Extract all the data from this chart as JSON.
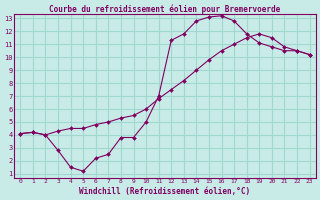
{
  "title": "Courbe du refroidissement éolien pour Bremervoerde",
  "xlabel": "Windchill (Refroidissement éolien,°C)",
  "ylabel": "",
  "bg_color": "#c8ebe8",
  "line_color": "#800060",
  "grid_color": "#a0d8d0",
  "line1_x": [
    0,
    1,
    2,
    3,
    4,
    5,
    6,
    7,
    8,
    9,
    10,
    11,
    12,
    13,
    14,
    15,
    16,
    17,
    18,
    19,
    20,
    21,
    22,
    23
  ],
  "line1_y": [
    4.1,
    4.2,
    4.0,
    2.8,
    1.5,
    1.2,
    2.2,
    2.5,
    3.8,
    3.8,
    5.0,
    7.0,
    11.3,
    11.8,
    12.8,
    13.1,
    13.2,
    12.8,
    11.8,
    11.1,
    10.8,
    10.5,
    10.5,
    10.2
  ],
  "line2_x": [
    0,
    1,
    2,
    3,
    4,
    5,
    6,
    7,
    8,
    9,
    10,
    11,
    12,
    13,
    14,
    15,
    16,
    17,
    18,
    19,
    20,
    21,
    22,
    23
  ],
  "line2_y": [
    4.1,
    4.2,
    4.0,
    4.3,
    4.5,
    4.5,
    4.8,
    5.0,
    5.3,
    5.5,
    6.0,
    6.8,
    7.5,
    8.2,
    9.0,
    9.8,
    10.5,
    11.0,
    11.5,
    11.8,
    11.5,
    10.8,
    10.5,
    10.2
  ],
  "xmin": 0,
  "xmax": 23,
  "ymin": 1,
  "ymax": 13,
  "xticks": [
    0,
    1,
    2,
    3,
    4,
    5,
    6,
    7,
    8,
    9,
    10,
    11,
    12,
    13,
    14,
    15,
    16,
    17,
    18,
    19,
    20,
    21,
    22,
    23
  ],
  "yticks": [
    1,
    2,
    3,
    4,
    5,
    6,
    7,
    8,
    9,
    10,
    11,
    12,
    13
  ]
}
